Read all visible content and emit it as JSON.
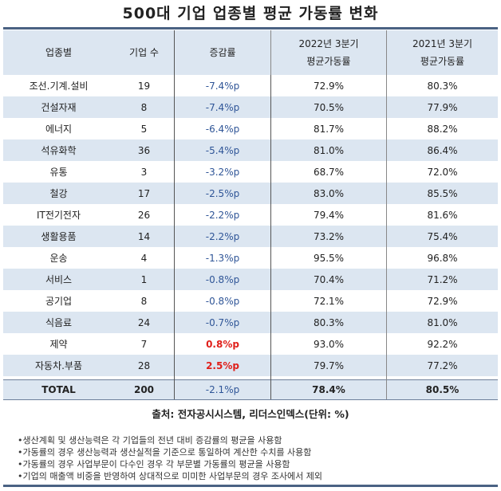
{
  "title": "500대 기업 업종별 평균 가동률 변화",
  "headers": {
    "sector": "업종별",
    "count": "기업 수",
    "change": "증감률",
    "y2022_l1": "2022년 3분기",
    "y2022_l2": "평균가동률",
    "y2021_l1": "2021년 3분기",
    "y2021_l2": "평균가동률"
  },
  "rows": [
    {
      "sector": "조선.기계.설비",
      "count": "19",
      "change": "-7.4%p",
      "y2022": "72.9%",
      "y2021": "80.3%"
    },
    {
      "sector": "건설자재",
      "count": "8",
      "change": "-7.4%p",
      "y2022": "70.5%",
      "y2021": "77.9%"
    },
    {
      "sector": "에너지",
      "count": "5",
      "change": "-6.4%p",
      "y2022": "81.7%",
      "y2021": "88.2%"
    },
    {
      "sector": "석유화학",
      "count": "36",
      "change": "-5.4%p",
      "y2022": "81.0%",
      "y2021": "86.4%"
    },
    {
      "sector": "유통",
      "count": "3",
      "change": "-3.2%p",
      "y2022": "68.7%",
      "y2021": "72.0%"
    },
    {
      "sector": "철강",
      "count": "17",
      "change": "-2.5%p",
      "y2022": "83.0%",
      "y2021": "85.5%"
    },
    {
      "sector": "IT전기전자",
      "count": "26",
      "change": "-2.2%p",
      "y2022": "79.4%",
      "y2021": "81.6%"
    },
    {
      "sector": "생활용품",
      "count": "14",
      "change": "-2.2%p",
      "y2022": "73.2%",
      "y2021": "75.4%"
    },
    {
      "sector": "운송",
      "count": "4",
      "change": "-1.3%p",
      "y2022": "95.5%",
      "y2021": "96.8%"
    },
    {
      "sector": "서비스",
      "count": "1",
      "change": "-0.8%p",
      "y2022": "70.4%",
      "y2021": "71.2%"
    },
    {
      "sector": "공기업",
      "count": "8",
      "change": "-0.8%p",
      "y2022": "72.1%",
      "y2021": "72.9%"
    },
    {
      "sector": "식음료",
      "count": "24",
      "change": "-0.7%p",
      "y2022": "80.3%",
      "y2021": "81.0%"
    },
    {
      "sector": "제약",
      "count": "7",
      "change": "0.8%p",
      "y2022": "93.0%",
      "y2021": "92.2%"
    },
    {
      "sector": "자동차.부품",
      "count": "28",
      "change": "2.5%p",
      "y2022": "79.7%",
      "y2021": "77.2%"
    }
  ],
  "total": {
    "sector": "TOTAL",
    "count": "200",
    "change": "-2.1%p",
    "y2022": "78.4%",
    "y2021": "80.5%"
  },
  "source": "출처: 전자공시시스템, 리더스인덱스(단위: %)",
  "notes": [
    "•생산계획 및 생산능력은 각 기업들의 전년 대비 증감률의 평균을 사용함",
    "•가동률의 경우 생산능력과 생산실적을 기준으로 통일하여 계산한 수치를 사용함",
    "•가동률의 경우 사업부문이 다수인 경우 각 부문별 가동률의 평균을 사용함",
    "•기업의 매출액 비중을 반영하여 상대적으로 미미한 사업부문의 경우 조사에서 제외"
  ],
  "colors": {
    "negative": "#2f5597",
    "positive": "#e0201b",
    "band": "#dce6f1",
    "rule": "#4a6283"
  }
}
